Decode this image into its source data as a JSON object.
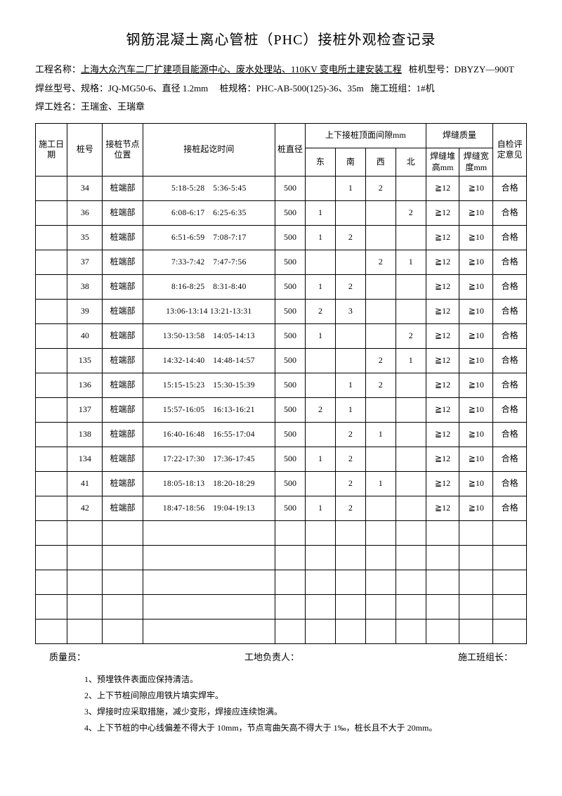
{
  "title": "钢筋混凝土离心管桩（PHC）接桩外观检查记录",
  "meta": {
    "line1_label": "工程名称：",
    "project_name": "上海大众汽车二厂扩建项目能源中心、废水处理站、110KV 变电所土建安装工程",
    "machine_label": "桩机型号：",
    "machine_model": "DBYZY—900T",
    "line2_wire_label": "焊丝型号、规格：",
    "wire_spec": "JQ-MG50-6、直径 1.2mm",
    "pile_spec_label": "桩规格：",
    "pile_spec": "PHC-AB-500(125)-36、35m",
    "crew_label": "施工班组：",
    "crew": "1#机",
    "welder_label": "焊工姓名：",
    "welders": "王瑞金、王瑞章"
  },
  "headers": {
    "date": "施工日期",
    "pile_no": "桩号",
    "joint_pos": "接桩节点位置",
    "time": "接桩起讫时间",
    "dia": "桩直径",
    "gap_group": "上下接桩顶面间隙mm",
    "east": "东",
    "south": "南",
    "west": "西",
    "north": "北",
    "weld_group": "焊缝质量",
    "weld_h": "焊缝堆高mm",
    "weld_w": "焊缝宽度mm",
    "eval": "自检评定意见"
  },
  "rows": [
    {
      "pile": "34",
      "pos": "桩端部",
      "time": "5:18-5:28　5:36-5:45",
      "dia": "500",
      "e": "",
      "s": "1",
      "w": "2",
      "n": "",
      "wh": "≧12",
      "ww": "≧10",
      "ev": "合格"
    },
    {
      "pile": "36",
      "pos": "桩端部",
      "time": "6:08-6:17　6:25-6:35",
      "dia": "500",
      "e": "1",
      "s": "",
      "w": "",
      "n": "2",
      "wh": "≧12",
      "ww": "≧10",
      "ev": "合格"
    },
    {
      "pile": "35",
      "pos": "桩端部",
      "time": "6:51-6:59　7:08-7:17",
      "dia": "500",
      "e": "1",
      "s": "2",
      "w": "",
      "n": "",
      "wh": "≧12",
      "ww": "≧10",
      "ev": "合格"
    },
    {
      "pile": "37",
      "pos": "桩端部",
      "time": "7:33-7:42　7:47-7:56",
      "dia": "500",
      "e": "",
      "s": "",
      "w": "2",
      "n": "1",
      "wh": "≧12",
      "ww": "≧10",
      "ev": "合格"
    },
    {
      "pile": "38",
      "pos": "桩端部",
      "time": "8:16-8:25　8:31-8:40",
      "dia": "500",
      "e": "1",
      "s": "2",
      "w": "",
      "n": "",
      "wh": "≧12",
      "ww": "≧10",
      "ev": "合格"
    },
    {
      "pile": "39",
      "pos": "桩端部",
      "time": "13:06-13:14 13:21-13:31",
      "dia": "500",
      "e": "2",
      "s": "3",
      "w": "",
      "n": "",
      "wh": "≧12",
      "ww": "≧10",
      "ev": "合格"
    },
    {
      "pile": "40",
      "pos": "桩端部",
      "time": "13:50-13:58　14:05-14:13",
      "dia": "500",
      "e": "1",
      "s": "",
      "w": "",
      "n": "2",
      "wh": "≧12",
      "ww": "≧10",
      "ev": "合格"
    },
    {
      "pile": "135",
      "pos": "桩端部",
      "time": "14:32-14:40　14:48-14:57",
      "dia": "500",
      "e": "",
      "s": "",
      "w": "2",
      "n": "1",
      "wh": "≧12",
      "ww": "≧10",
      "ev": "合格"
    },
    {
      "pile": "136",
      "pos": "桩端部",
      "time": "15:15-15:23　15:30-15:39",
      "dia": "500",
      "e": "",
      "s": "1",
      "w": "2",
      "n": "",
      "wh": "≧12",
      "ww": "≧10",
      "ev": "合格"
    },
    {
      "pile": "137",
      "pos": "桩端部",
      "time": "15:57-16:05　16:13-16:21",
      "dia": "500",
      "e": "2",
      "s": "1",
      "w": "",
      "n": "",
      "wh": "≧12",
      "ww": "≧10",
      "ev": "合格"
    },
    {
      "pile": "138",
      "pos": "桩端部",
      "time": "16:40-16:48　16:55-17:04",
      "dia": "500",
      "e": "",
      "s": "2",
      "w": "1",
      "n": "",
      "wh": "≧12",
      "ww": "≧10",
      "ev": "合格"
    },
    {
      "pile": "134",
      "pos": "桩端部",
      "time": "17:22-17:30　17:36-17:45",
      "dia": "500",
      "e": "1",
      "s": "2",
      "w": "",
      "n": "",
      "wh": "≧12",
      "ww": "≧10",
      "ev": "合格"
    },
    {
      "pile": "41",
      "pos": "桩端部",
      "time": "18:05-18:13　18:20-18:29",
      "dia": "500",
      "e": "",
      "s": "2",
      "w": "1",
      "n": "",
      "wh": "≧12",
      "ww": "≧10",
      "ev": "合格"
    },
    {
      "pile": "42",
      "pos": "桩端部",
      "time": "18:47-18:56　19:04-19:13",
      "dia": "500",
      "e": "1",
      "s": "2",
      "w": "",
      "n": "",
      "wh": "≧12",
      "ww": "≧10",
      "ev": "合格"
    },
    {
      "pile": "",
      "pos": "",
      "time": "",
      "dia": "",
      "e": "",
      "s": "",
      "w": "",
      "n": "",
      "wh": "",
      "ww": "",
      "ev": ""
    },
    {
      "pile": "",
      "pos": "",
      "time": "",
      "dia": "",
      "e": "",
      "s": "",
      "w": "",
      "n": "",
      "wh": "",
      "ww": "",
      "ev": ""
    },
    {
      "pile": "",
      "pos": "",
      "time": "",
      "dia": "",
      "e": "",
      "s": "",
      "w": "",
      "n": "",
      "wh": "",
      "ww": "",
      "ev": ""
    },
    {
      "pile": "",
      "pos": "",
      "time": "",
      "dia": "",
      "e": "",
      "s": "",
      "w": "",
      "n": "",
      "wh": "",
      "ww": "",
      "ev": ""
    },
    {
      "pile": "",
      "pos": "",
      "time": "",
      "dia": "",
      "e": "",
      "s": "",
      "w": "",
      "n": "",
      "wh": "",
      "ww": "",
      "ev": ""
    }
  ],
  "sign": {
    "qc": "质量员：",
    "site": "工地负责人：",
    "crew_lead": "施工班组长："
  },
  "notes": {
    "n1": "1、预埋铁件表面应保持清洁。",
    "n2": "2、上下节桩间隙应用铁片填实焊牢。",
    "n3": "3、焊接时应采取措施，减少变形，焊接应连续饱满。",
    "n4": "4、上下节桩的中心线偏差不得大于 10mm，节点弯曲矢高不得大于 1‰，桩长且不大于 20mm。"
  }
}
